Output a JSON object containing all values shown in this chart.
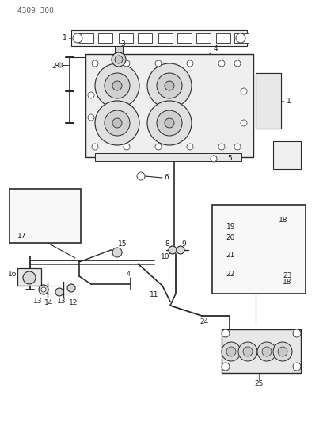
{
  "background_color": "#ffffff",
  "line_color": "#2a2a2a",
  "text_color": "#1a1a1a",
  "fig_width": 4.08,
  "fig_height": 5.33,
  "dpi": 100,
  "part_number": "4309  300"
}
